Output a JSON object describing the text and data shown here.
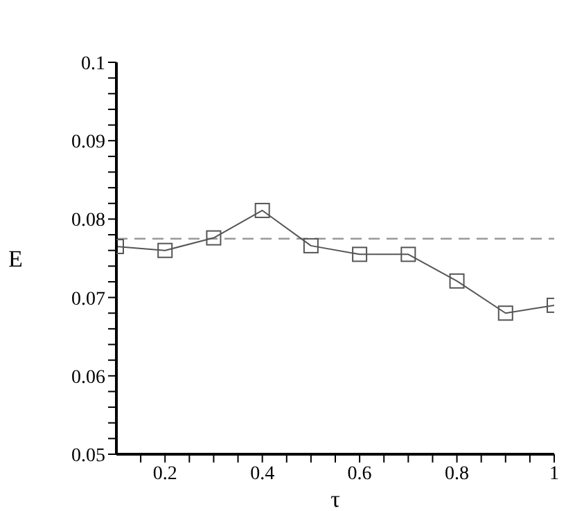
{
  "chart_data": {
    "type": "line",
    "xlabel": "τ",
    "ylabel": "E",
    "x": [
      0.1,
      0.2,
      0.3,
      0.4,
      0.5,
      0.6,
      0.7,
      0.8,
      0.9,
      1
    ],
    "series": [
      {
        "color": "#555555",
        "values": [
          0.0765,
          0.076,
          0.0776,
          0.0811,
          0.0766,
          0.0755,
          0.0755,
          0.0721,
          0.068,
          0.069
        ]
      }
    ],
    "xlim": [
      0.1,
      1
    ],
    "xticks": [
      {
        "value": 0.15,
        "label": null
      },
      0.2,
      {
        "value": 0.25,
        "label": null
      },
      {
        "value": 0.3,
        "label": null
      },
      {
        "value": 0.35,
        "label": null
      },
      0.4,
      {
        "value": 0.45,
        "label": null
      },
      {
        "value": 0.5,
        "label": null
      },
      {
        "value": 0.55,
        "label": null
      },
      0.6,
      {
        "value": 0.65,
        "label": null
      },
      {
        "value": 0.7,
        "label": null
      },
      {
        "value": 0.75,
        "label": null
      },
      0.8,
      {
        "value": 0.85,
        "label": null
      },
      {
        "value": 0.9,
        "label": null
      },
      {
        "value": 0.95,
        "label": null
      },
      1
    ],
    "ylim": [
      0.05,
      0.1
    ],
    "yticks": [
      0.05,
      {
        "value": 0.052,
        "label": null
      },
      {
        "value": 0.054,
        "label": null
      },
      {
        "value": 0.056,
        "label": null
      },
      {
        "value": 0.058,
        "label": null
      },
      0.06,
      {
        "value": 0.062,
        "label": null
      },
      {
        "value": 0.064,
        "label": null
      },
      {
        "value": 0.066,
        "label": null
      },
      {
        "value": 0.068,
        "label": null
      },
      0.07,
      {
        "value": 0.072,
        "label": null
      },
      {
        "value": 0.074,
        "label": null
      },
      {
        "value": 0.076,
        "label": null
      },
      {
        "value": 0.078,
        "label": null
      },
      0.08,
      {
        "value": 0.082,
        "label": null
      },
      {
        "value": 0.084,
        "label": null
      },
      {
        "value": 0.086,
        "label": null
      },
      {
        "value": 0.088,
        "label": null
      },
      0.09,
      {
        "value": 0.092,
        "label": null
      },
      {
        "value": 0.094,
        "label": null
      },
      {
        "value": 0.096,
        "label": null
      },
      {
        "value": 0.098,
        "label": null
      },
      0.1
    ],
    "ref_lines": [
      {
        "axis": "y",
        "value": 0.0775,
        "color": "#999999",
        "line_style": "dashed"
      }
    ],
    "marker": "square",
    "line_style": "solid",
    "grid": false,
    "legend": false
  }
}
